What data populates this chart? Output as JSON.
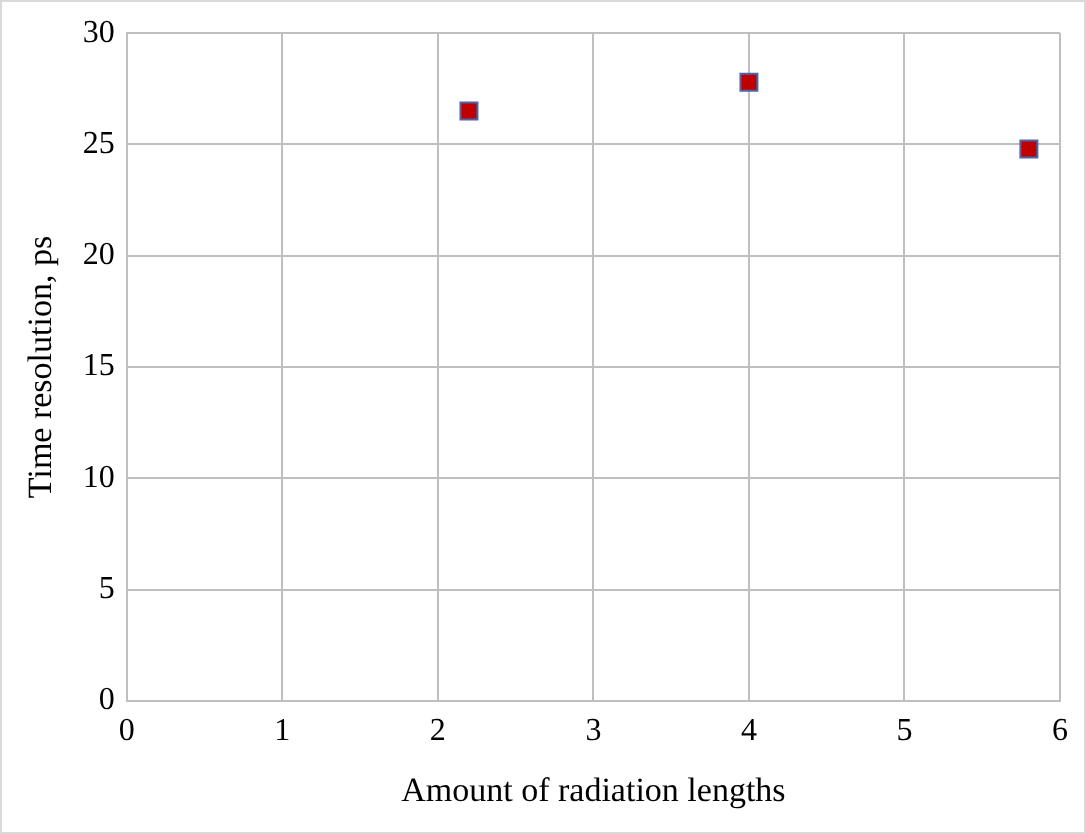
{
  "chart_data": {
    "type": "scatter",
    "xlabel": "Amount of radiation lengths",
    "ylabel": "Time resolution, ps",
    "x": [
      2.2,
      4,
      5.8
    ],
    "series": [
      {
        "color": "#c00000",
        "values": [
          26.5,
          27.8,
          24.8
        ]
      }
    ],
    "xlim": [
      0,
      6
    ],
    "xticks": [
      0,
      1,
      2,
      3,
      4,
      5,
      6
    ],
    "ylim": [
      0,
      30
    ],
    "yticks": [
      0,
      5,
      10,
      15,
      20,
      25,
      30
    ],
    "grid": true,
    "legend": false,
    "marker": "square"
  }
}
